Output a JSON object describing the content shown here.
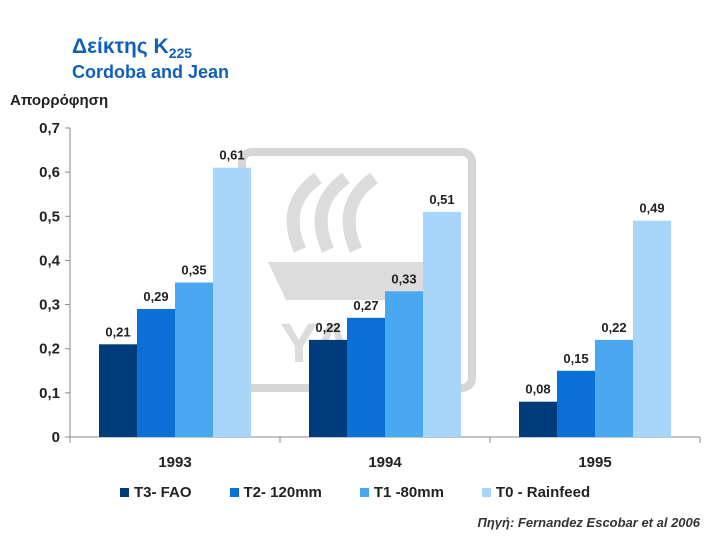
{
  "title": {
    "main": "Δείκτης K",
    "subscript": "225",
    "subtitle": "Cordoba and Jean"
  },
  "source": "Πηγή: Fernandez Escobar et al 2006",
  "chart_data": {
    "type": "bar",
    "title": "Δείκτης K225",
    "subtitle": "Cordoba and Jean",
    "ylabel": "Απορρόφηση",
    "xlabel": "",
    "ylim": [
      0,
      0.7
    ],
    "yticks": [
      "0",
      "0,1",
      "0,2",
      "0,3",
      "0,4",
      "0,5",
      "0,6",
      "0,7"
    ],
    "categories": [
      "1993",
      "1994",
      "1995"
    ],
    "series": [
      {
        "name": "T3- FAO",
        "color": "#003b7a",
        "values": [
          0.21,
          0.22,
          0.08
        ],
        "labels": [
          "0,21",
          "0,22",
          "0,08"
        ]
      },
      {
        "name": "T2- 120mm",
        "color": "#0a6fd6",
        "values": [
          0.29,
          0.27,
          0.15
        ],
        "labels": [
          "0,29",
          "0,27",
          "0,15"
        ]
      },
      {
        "name": "T1 -80mm",
        "color": "#4aa8f0",
        "values": [
          0.35,
          0.33,
          0.22
        ],
        "labels": [
          "0,35",
          "0,33",
          "0,22"
        ]
      },
      {
        "name": "T0 - Rainfeed",
        "color": "#a8d6fb",
        "values": [
          0.61,
          0.51,
          0.49
        ],
        "labels": [
          "0,61",
          "0,51",
          "0,49"
        ]
      }
    ],
    "legend_position": "bottom",
    "grid": false
  },
  "watermark": "YARA"
}
